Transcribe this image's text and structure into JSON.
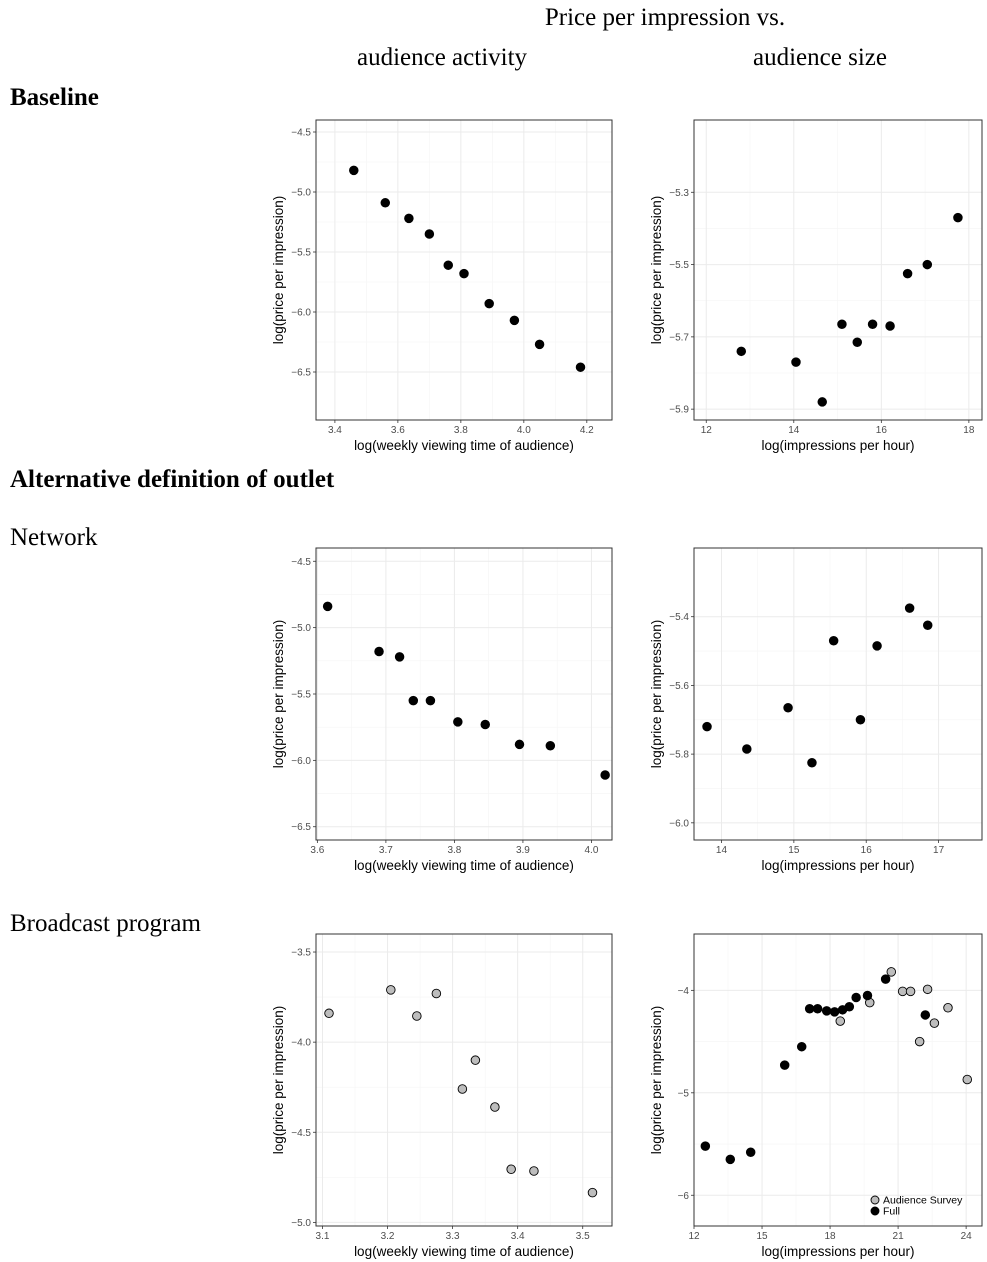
{
  "figure": {
    "title": "Price per impression vs.",
    "column_headers": [
      "audience activity",
      "audience size"
    ],
    "sections": [
      {
        "label": "Baseline"
      },
      {
        "label": "Alternative definition of outlet"
      }
    ],
    "row_labels": [
      "Network",
      "Broadcast program"
    ]
  },
  "colors": {
    "full": "#000000",
    "audience_survey": "#bdbdbd",
    "grid_major": "#ebebeb",
    "grid_minor": "#f5f5f5",
    "panel_border": "#333333",
    "tick_text": "#4d4d4d"
  },
  "chart_data": [
    {
      "id": "baseline-activity",
      "type": "scatter",
      "xlabel": "log(weekly viewing time of audience)",
      "ylabel": "log(price per impression)",
      "xlim": [
        3.34,
        4.28
      ],
      "ylim": [
        -6.9,
        -4.4
      ],
      "xticks": [
        3.4,
        3.6,
        3.8,
        4.0,
        4.2
      ],
      "xtick_labels": [
        "3.4",
        "3.6",
        "3.8",
        "4.0",
        "4.2"
      ],
      "yticks": [
        -6.5,
        -6.0,
        -5.5,
        -5.0,
        -4.5
      ],
      "ytick_labels": [
        "−6.5",
        "−6.0",
        "−5.5",
        "−5.0",
        "−4.5"
      ],
      "grid": true,
      "legend": null,
      "series": [
        {
          "key": "full",
          "points": [
            [
              3.46,
              -4.82
            ],
            [
              3.56,
              -5.09
            ],
            [
              3.635,
              -5.22
            ],
            [
              3.7,
              -5.35
            ],
            [
              3.76,
              -5.61
            ],
            [
              3.81,
              -5.68
            ],
            [
              3.89,
              -5.93
            ],
            [
              3.97,
              -6.07
            ],
            [
              4.05,
              -6.27
            ],
            [
              4.18,
              -6.46
            ]
          ]
        }
      ]
    },
    {
      "id": "baseline-size",
      "type": "scatter",
      "xlabel": "log(impressions per hour)",
      "ylabel": "log(price per impression)",
      "xlim": [
        11.72,
        18.3
      ],
      "ylim": [
        -5.93,
        -5.1
      ],
      "xticks": [
        12,
        14,
        16,
        18
      ],
      "xtick_labels": [
        "12",
        "14",
        "16",
        "18"
      ],
      "yticks": [
        -5.9,
        -5.7,
        -5.5,
        -5.3
      ],
      "ytick_labels": [
        "−5.9",
        "−5.7",
        "−5.5",
        "−5.3"
      ],
      "grid": true,
      "legend": null,
      "series": [
        {
          "key": "full",
          "points": [
            [
              12.8,
              -5.74
            ],
            [
              14.05,
              -5.77
            ],
            [
              14.65,
              -5.88
            ],
            [
              15.1,
              -5.665
            ],
            [
              15.45,
              -5.715
            ],
            [
              15.8,
              -5.665
            ],
            [
              16.2,
              -5.67
            ],
            [
              16.6,
              -5.525
            ],
            [
              17.05,
              -5.5
            ],
            [
              17.75,
              -5.37
            ]
          ]
        }
      ]
    },
    {
      "id": "network-activity",
      "type": "scatter",
      "xlabel": "log(weekly viewing time of audience)",
      "ylabel": "log(price per impression)",
      "xlim": [
        3.598,
        4.03
      ],
      "ylim": [
        -6.6,
        -4.4
      ],
      "xticks": [
        3.6,
        3.7,
        3.8,
        3.9,
        4.0
      ],
      "xtick_labels": [
        "3.6",
        "3.7",
        "3.8",
        "3.9",
        "4.0"
      ],
      "yticks": [
        -6.5,
        -6.0,
        -5.5,
        -5.0,
        -4.5
      ],
      "ytick_labels": [
        "−6.5",
        "−6.0",
        "−5.5",
        "−5.0",
        "−4.5"
      ],
      "grid": true,
      "legend": null,
      "series": [
        {
          "key": "full",
          "points": [
            [
              3.615,
              -4.84
            ],
            [
              3.69,
              -5.18
            ],
            [
              3.72,
              -5.22
            ],
            [
              3.74,
              -5.55
            ],
            [
              3.765,
              -5.55
            ],
            [
              3.805,
              -5.71
            ],
            [
              3.845,
              -5.73
            ],
            [
              3.895,
              -5.88
            ],
            [
              3.94,
              -5.89
            ],
            [
              4.02,
              -6.11
            ]
          ]
        }
      ]
    },
    {
      "id": "network-size",
      "type": "scatter",
      "xlabel": "log(impressions per hour)",
      "ylabel": "log(price per impression)",
      "xlim": [
        13.62,
        17.6
      ],
      "ylim": [
        -6.05,
        -5.2
      ],
      "xticks": [
        14,
        15,
        16,
        17
      ],
      "xtick_labels": [
        "14",
        "15",
        "16",
        "17"
      ],
      "yticks": [
        -6.0,
        -5.8,
        -5.6,
        -5.4
      ],
      "ytick_labels": [
        "−6.0",
        "−5.8",
        "−5.6",
        "−5.4"
      ],
      "grid": true,
      "legend": null,
      "series": [
        {
          "key": "full",
          "points": [
            [
              13.8,
              -5.72
            ],
            [
              14.35,
              -5.785
            ],
            [
              14.92,
              -5.665
            ],
            [
              15.25,
              -5.825
            ],
            [
              15.55,
              -5.47
            ],
            [
              15.92,
              -5.7
            ],
            [
              16.15,
              -5.485
            ],
            [
              16.6,
              -5.375
            ],
            [
              16.85,
              -5.425
            ]
          ]
        }
      ]
    },
    {
      "id": "broadcast-activity",
      "type": "scatter",
      "xlabel": "log(weekly viewing time of audience)",
      "ylabel": "log(price per impression)",
      "xlim": [
        3.09,
        3.545
      ],
      "ylim": [
        -5.02,
        -3.4
      ],
      "xticks": [
        3.1,
        3.2,
        3.3,
        3.4,
        3.5
      ],
      "xtick_labels": [
        "3.1",
        "3.2",
        "3.3",
        "3.4",
        "3.5"
      ],
      "yticks": [
        -5.0,
        -4.5,
        -4.0,
        -3.5
      ],
      "ytick_labels": [
        "−5.0",
        "−4.5",
        "−4.0",
        "−3.5"
      ],
      "grid": true,
      "legend": null,
      "series": [
        {
          "key": "audience_survey",
          "points": [
            [
              3.11,
              -3.84
            ],
            [
              3.205,
              -3.71
            ],
            [
              3.245,
              -3.855
            ],
            [
              3.275,
              -3.73
            ],
            [
              3.315,
              -4.26
            ],
            [
              3.335,
              -4.1
            ],
            [
              3.365,
              -4.36
            ],
            [
              3.39,
              -4.705
            ],
            [
              3.425,
              -4.715
            ],
            [
              3.515,
              -4.835
            ]
          ]
        }
      ]
    },
    {
      "id": "broadcast-size",
      "type": "scatter",
      "xlabel": "log(impressions per hour)",
      "ylabel": "log(price per impression)",
      "xlim": [
        12.0,
        24.7
      ],
      "ylim": [
        -6.3,
        -3.45
      ],
      "xticks": [
        12,
        15,
        18,
        21,
        24
      ],
      "xtick_labels": [
        "12",
        "15",
        "18",
        "21",
        "24"
      ],
      "yticks": [
        -6,
        -5,
        -4
      ],
      "ytick_labels": [
        "−6",
        "−5",
        "−4"
      ],
      "grid": true,
      "legend": "bottom-right",
      "series": [
        {
          "key": "audience_survey",
          "name": "Audience Survey",
          "points": [
            [
              18.45,
              -4.3
            ],
            [
              19.75,
              -4.12
            ],
            [
              20.7,
              -3.82
            ],
            [
              21.2,
              -4.01
            ],
            [
              21.55,
              -4.01
            ],
            [
              21.95,
              -4.5
            ],
            [
              22.3,
              -3.99
            ],
            [
              22.6,
              -4.32
            ],
            [
              23.2,
              -4.17
            ],
            [
              24.05,
              -4.87
            ]
          ]
        },
        {
          "key": "full",
          "name": "Full",
          "points": [
            [
              12.5,
              -5.52
            ],
            [
              13.6,
              -5.65
            ],
            [
              14.5,
              -5.58
            ],
            [
              16.0,
              -4.73
            ],
            [
              16.75,
              -4.55
            ],
            [
              17.1,
              -4.18
            ],
            [
              17.45,
              -4.18
            ],
            [
              17.85,
              -4.2
            ],
            [
              18.2,
              -4.21
            ],
            [
              18.55,
              -4.19
            ],
            [
              18.85,
              -4.16
            ],
            [
              19.15,
              -4.07
            ],
            [
              19.65,
              -4.05
            ],
            [
              20.45,
              -3.89
            ],
            [
              22.2,
              -4.24
            ]
          ]
        }
      ]
    }
  ]
}
